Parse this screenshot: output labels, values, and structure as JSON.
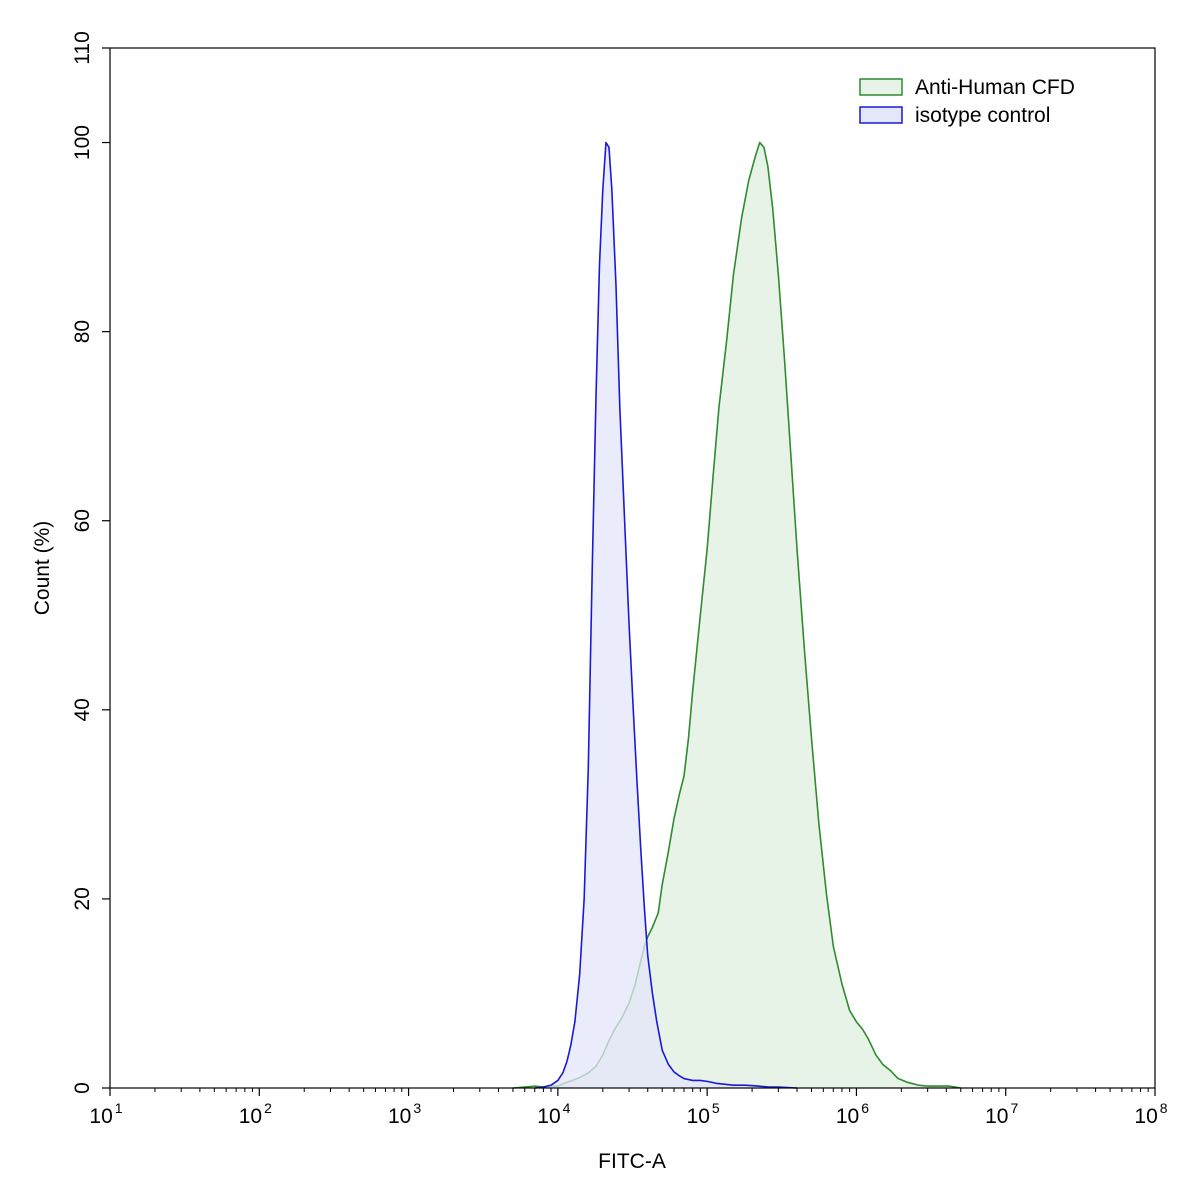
{
  "chart_data": {
    "type": "area",
    "xlabel": "FITC-A",
    "ylabel": "Count  (%)",
    "x_scale": "log10",
    "xlim": [
      10,
      100000000
    ],
    "ylim": [
      0,
      110
    ],
    "x_ticks": [
      {
        "base": "10",
        "exp": "1",
        "value": 10
      },
      {
        "base": "10",
        "exp": "2",
        "value": 100
      },
      {
        "base": "10",
        "exp": "3",
        "value": 1000
      },
      {
        "base": "10",
        "exp": "4",
        "value": 10000
      },
      {
        "base": "10",
        "exp": "5",
        "value": 100000
      },
      {
        "base": "10",
        "exp": "6",
        "value": 1000000
      },
      {
        "base": "10",
        "exp": "7",
        "value": 10000000
      },
      {
        "base": "10",
        "exp": "8",
        "value": 100000000
      }
    ],
    "y_ticks": [
      "0",
      "20",
      "40",
      "60",
      "80",
      "100",
      "110"
    ],
    "legend": {
      "position": "top-right"
    },
    "series": [
      {
        "name": "Anti-Human CFD",
        "stroke": "#2e8b2e",
        "fill": "#e8f3e8",
        "points": [
          [
            5000,
            0
          ],
          [
            6000,
            0.1
          ],
          [
            7000,
            0.2
          ],
          [
            8000,
            0.1
          ],
          [
            9000,
            0.2
          ],
          [
            10000,
            0.2
          ],
          [
            11000,
            0.5
          ],
          [
            12500,
            0.8
          ],
          [
            14000,
            1.1
          ],
          [
            16000,
            1.6
          ],
          [
            18000,
            2.3
          ],
          [
            20000,
            3.5
          ],
          [
            22000,
            5.0
          ],
          [
            24000,
            6.2
          ],
          [
            27000,
            7.5
          ],
          [
            30000,
            9.0
          ],
          [
            33000,
            11.0
          ],
          [
            36000,
            13.5
          ],
          [
            38000,
            15.0
          ],
          [
            40000,
            16.0
          ],
          [
            43000,
            17.0
          ],
          [
            47000,
            18.5
          ],
          [
            50000,
            21.5
          ],
          [
            55000,
            25.0
          ],
          [
            60000,
            28.5
          ],
          [
            65000,
            31.0
          ],
          [
            70000,
            33.0
          ],
          [
            75000,
            37.0
          ],
          [
            80000,
            42.0
          ],
          [
            90000,
            50.0
          ],
          [
            100000,
            57.0
          ],
          [
            110000,
            65.0
          ],
          [
            120000,
            72.0
          ],
          [
            135000,
            79.0
          ],
          [
            150000,
            86.0
          ],
          [
            170000,
            92.0
          ],
          [
            190000,
            96.0
          ],
          [
            210000,
            98.5
          ],
          [
            225000,
            100
          ],
          [
            240000,
            99.5
          ],
          [
            255000,
            97.5
          ],
          [
            275000,
            93.0
          ],
          [
            300000,
            86.0
          ],
          [
            330000,
            77.0
          ],
          [
            360000,
            68.0
          ],
          [
            400000,
            57.0
          ],
          [
            450000,
            46.0
          ],
          [
            500000,
            37.0
          ],
          [
            560000,
            28.0
          ],
          [
            630000,
            20.5
          ],
          [
            700000,
            15.0
          ],
          [
            800000,
            11.0
          ],
          [
            900000,
            8.2
          ],
          [
            1000000,
            7.0
          ],
          [
            1100000,
            6.2
          ],
          [
            1200000,
            5.2
          ],
          [
            1350000,
            3.5
          ],
          [
            1500000,
            2.5
          ],
          [
            1700000,
            1.8
          ],
          [
            1900000,
            1.0
          ],
          [
            2200000,
            0.6
          ],
          [
            2600000,
            0.3
          ],
          [
            3000000,
            0.2
          ],
          [
            3500000,
            0.2
          ],
          [
            4200000,
            0.2
          ],
          [
            5000000,
            0
          ]
        ]
      },
      {
        "name": "isotype control",
        "stroke": "#1a1ad6",
        "fill": "#e4e6fa",
        "points": [
          [
            7000,
            0
          ],
          [
            8000,
            0.1
          ],
          [
            9000,
            0.3
          ],
          [
            10000,
            0.8
          ],
          [
            10800,
            1.6
          ],
          [
            11500,
            2.8
          ],
          [
            12200,
            4.5
          ],
          [
            13000,
            7.0
          ],
          [
            14000,
            12.0
          ],
          [
            15000,
            20.0
          ],
          [
            16000,
            34.0
          ],
          [
            17000,
            55.0
          ],
          [
            18000,
            73.0
          ],
          [
            19000,
            87.0
          ],
          [
            20000,
            95.0
          ],
          [
            21000,
            100
          ],
          [
            22000,
            99.5
          ],
          [
            23000,
            95.0
          ],
          [
            24500,
            85.0
          ],
          [
            26000,
            72.0
          ],
          [
            28000,
            60.0
          ],
          [
            30000,
            49.0
          ],
          [
            32000,
            40.0
          ],
          [
            34000,
            32.0
          ],
          [
            36000,
            25.0
          ],
          [
            38000,
            19.0
          ],
          [
            40000,
            14.0
          ],
          [
            43000,
            10.0
          ],
          [
            46000,
            7.0
          ],
          [
            50000,
            4.0
          ],
          [
            55000,
            2.5
          ],
          [
            60000,
            1.7
          ],
          [
            65000,
            1.3
          ],
          [
            70000,
            1.0
          ],
          [
            80000,
            0.8
          ],
          [
            90000,
            0.8
          ],
          [
            100000,
            0.7
          ],
          [
            115000,
            0.5
          ],
          [
            130000,
            0.4
          ],
          [
            150000,
            0.3
          ],
          [
            180000,
            0.3
          ],
          [
            220000,
            0.2
          ],
          [
            260000,
            0.1
          ],
          [
            300000,
            0.1
          ],
          [
            400000,
            0
          ]
        ]
      }
    ]
  }
}
